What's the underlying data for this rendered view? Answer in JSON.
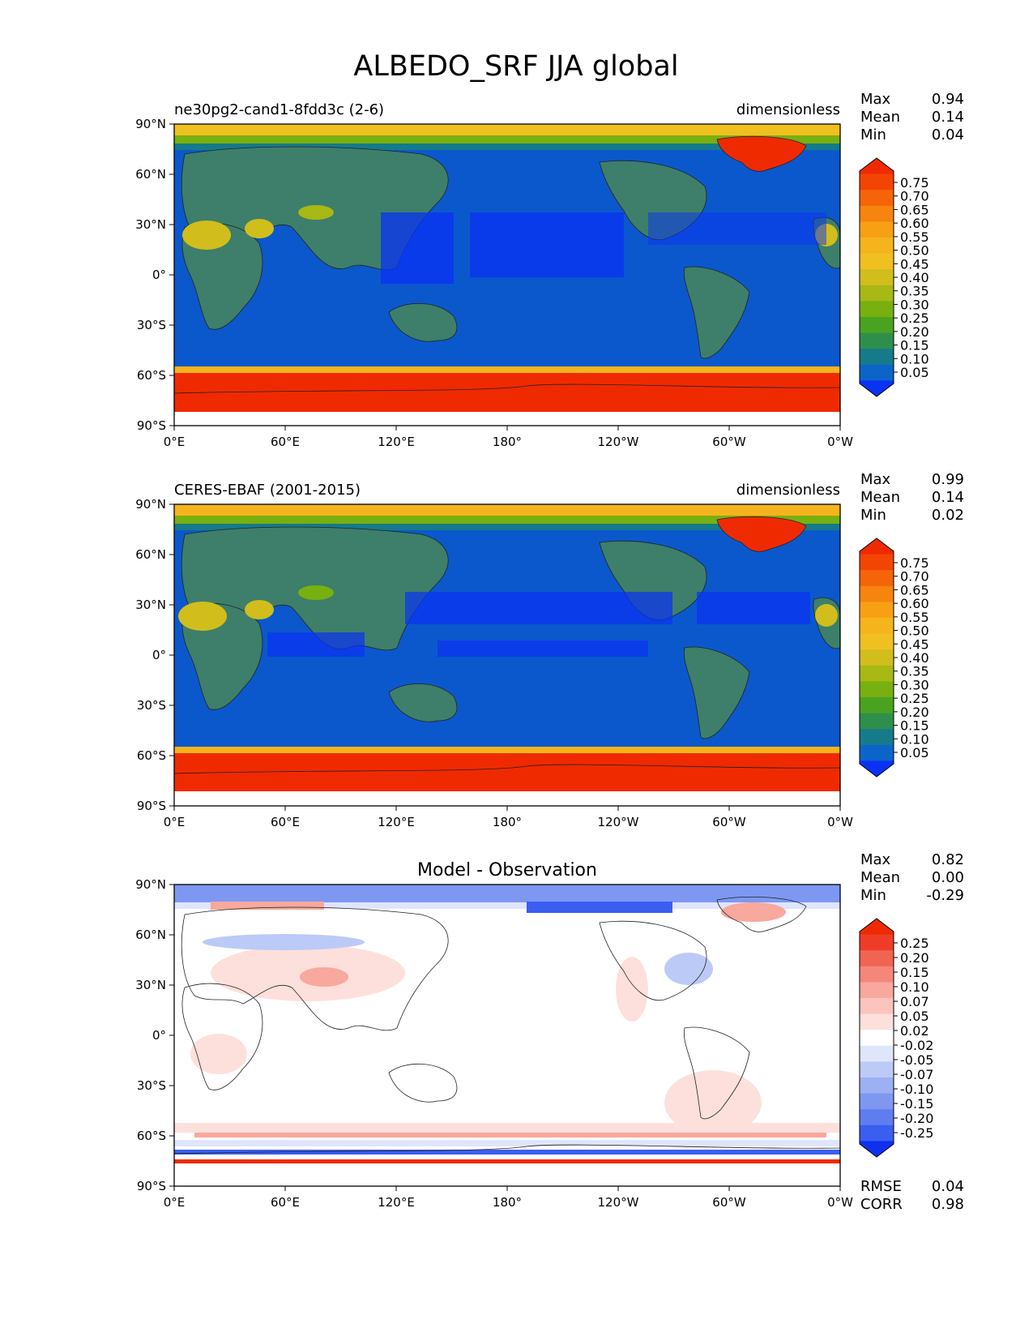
{
  "title": "ALBEDO_SRF JJA global",
  "lat_ticks": [
    "90°N",
    "60°N",
    "30°N",
    "0°",
    "30°S",
    "60°S",
    "90°S"
  ],
  "lon_ticks": [
    "0°E",
    "60°E",
    "120°E",
    "180°",
    "120°W",
    "60°W",
    "0°W"
  ],
  "panels": [
    {
      "left_label": "ne30pg2-cand1-8fdd3c (2-6)",
      "right_label": "dimensionless",
      "center_label": "",
      "stats": [
        {
          "label": "Max",
          "value": "0.94"
        },
        {
          "label": "Mean",
          "value": "0.14"
        },
        {
          "label": "Min",
          "value": "0.04"
        }
      ],
      "colorbar_ticks": [
        "0.75",
        "0.70",
        "0.65",
        "0.60",
        "0.55",
        "0.50",
        "0.45",
        "0.40",
        "0.35",
        "0.30",
        "0.25",
        "0.20",
        "0.15",
        "0.10",
        "0.05"
      ],
      "colormap": "albedo"
    },
    {
      "left_label": "CERES-EBAF (2001-2015)",
      "right_label": "dimensionless",
      "center_label": "",
      "stats": [
        {
          "label": "Max",
          "value": "0.99"
        },
        {
          "label": "Mean",
          "value": "0.14"
        },
        {
          "label": "Min",
          "value": "0.02"
        }
      ],
      "colorbar_ticks": [
        "0.75",
        "0.70",
        "0.65",
        "0.60",
        "0.55",
        "0.50",
        "0.45",
        "0.40",
        "0.35",
        "0.30",
        "0.25",
        "0.20",
        "0.15",
        "0.10",
        "0.05"
      ],
      "colormap": "albedo"
    },
    {
      "left_label": "",
      "right_label": "",
      "center_label": "Model - Observation",
      "stats": [
        {
          "label": "Max",
          "value": "0.82"
        },
        {
          "label": "Mean",
          "value": "0.00"
        },
        {
          "label": "Min",
          "value": "-0.29"
        }
      ],
      "colorbar_ticks": [
        "0.25",
        "0.20",
        "0.15",
        "0.10",
        "0.07",
        "0.05",
        "0.02",
        "-0.02",
        "-0.05",
        "-0.07",
        "-0.10",
        "-0.15",
        "-0.20",
        "-0.25"
      ],
      "colormap": "diff",
      "extra_stats": [
        {
          "label": "RMSE",
          "value": "0.04"
        },
        {
          "label": "CORR",
          "value": "0.98"
        }
      ]
    }
  ],
  "chart_data": [
    {
      "type": "heatmap",
      "title": "ne30pg2-cand1-8fdd3c (2-6)",
      "units": "dimensionless",
      "projection": "PlateCarree",
      "xlim": [
        0,
        360
      ],
      "ylim": [
        -90,
        90
      ],
      "max": 0.94,
      "mean": 0.14,
      "min": 0.04,
      "levels": [
        0.05,
        0.1,
        0.15,
        0.2,
        0.25,
        0.3,
        0.35,
        0.4,
        0.45,
        0.5,
        0.55,
        0.6,
        0.65,
        0.7,
        0.75
      ],
      "colors": [
        "#0a32f5",
        "#0b64c8",
        "#157a8a",
        "#2e8f4c",
        "#4aa320",
        "#78b010",
        "#a8b814",
        "#d1be1c",
        "#f0c020",
        "#f6b41c",
        "#f7a014",
        "#f6840e",
        "#f56408",
        "#f44404",
        "#f02a00"
      ]
    },
    {
      "type": "heatmap",
      "title": "CERES-EBAF (2001-2015)",
      "units": "dimensionless",
      "projection": "PlateCarree",
      "xlim": [
        0,
        360
      ],
      "ylim": [
        -90,
        90
      ],
      "max": 0.99,
      "mean": 0.14,
      "min": 0.02,
      "levels": [
        0.05,
        0.1,
        0.15,
        0.2,
        0.25,
        0.3,
        0.35,
        0.4,
        0.45,
        0.5,
        0.55,
        0.6,
        0.65,
        0.7,
        0.75
      ],
      "colors": [
        "#0a32f5",
        "#0b64c8",
        "#157a8a",
        "#2e8f4c",
        "#4aa320",
        "#78b010",
        "#a8b814",
        "#d1be1c",
        "#f0c020",
        "#f6b41c",
        "#f7a014",
        "#f6840e",
        "#f56408",
        "#f44404",
        "#f02a00"
      ]
    },
    {
      "type": "heatmap",
      "title": "Model - Observation",
      "projection": "PlateCarree",
      "xlim": [
        0,
        360
      ],
      "ylim": [
        -90,
        90
      ],
      "max": 0.82,
      "mean": 0.0,
      "min": -0.29,
      "rmse": 0.04,
      "corr": 0.98,
      "levels": [
        -0.25,
        -0.2,
        -0.15,
        -0.1,
        -0.07,
        -0.05,
        -0.02,
        0.02,
        0.05,
        0.07,
        0.1,
        0.15,
        0.2,
        0.25
      ],
      "colors": [
        "#1030f0",
        "#3a5ef0",
        "#5e7ef0",
        "#7e98f2",
        "#9cb0f4",
        "#bccaf8",
        "#dfe5fb",
        "#ffffff",
        "#fde0dc",
        "#fbc4bc",
        "#f8a89c",
        "#f5867a",
        "#f26452",
        "#ee3c28",
        "#f02a00"
      ]
    }
  ]
}
